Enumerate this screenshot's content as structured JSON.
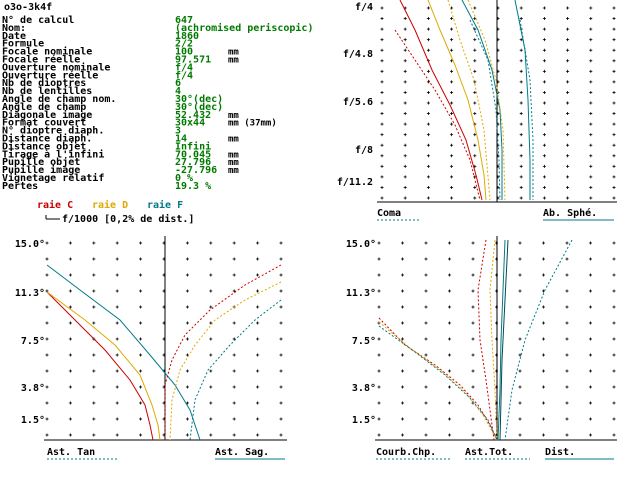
{
  "window_title": "o3o-3k4f",
  "colors": {
    "black": "#000000",
    "green": "#007a00",
    "red": "#cc0000",
    "yellow": "#e0a800",
    "blue": "#007a8a",
    "tick": "#000000"
  },
  "params": [
    {
      "label": "N° de calcul",
      "value": "647",
      "unit": ""
    },
    {
      "label": "Nom:",
      "value": "(achromised periscopic)",
      "unit": ""
    },
    {
      "label": "Date",
      "value": "1860",
      "unit": ""
    },
    {
      "label": "Formule",
      "value": "2/2",
      "unit": ""
    },
    {
      "label": "Focale nominale",
      "value": "100",
      "unit": "mm"
    },
    {
      "label": "Focale réelle",
      "value": "97.571",
      "unit": "mm"
    },
    {
      "label": "Ouverture nominale",
      "value": "f/4",
      "unit": ""
    },
    {
      "label": "Ouverture réelle",
      "value": "f/4",
      "unit": ""
    },
    {
      "label": "Nb de dioptres",
      "value": "6",
      "unit": ""
    },
    {
      "label": "Nb de lentilles",
      "value": "4",
      "unit": ""
    },
    {
      "label": "Angle de champ nom.",
      "value": "30°(dec)",
      "unit": ""
    },
    {
      "label": "Angle de champ",
      "value": "30°(dec)",
      "unit": ""
    },
    {
      "label": "Diagonale image",
      "value": "52.432",
      "unit": "mm"
    },
    {
      "label": "Format couvert",
      "value": "30x44",
      "unit": "mm (37mm)"
    },
    {
      "label": "N° dioptre diaph.",
      "value": "3",
      "unit": ""
    },
    {
      "label": "Distance diaph.",
      "value": "14",
      "unit": "mm"
    },
    {
      "label": "Distance objet",
      "value": "Infini",
      "unit": ""
    },
    {
      "label": "Tirage à l'infini",
      "value": "70.045",
      "unit": "mm"
    },
    {
      "label": "Pupille objet",
      "value": "27.796",
      "unit": "mm"
    },
    {
      "label": "Pupille image",
      "value": "-27.796",
      "unit": "mm"
    },
    {
      "label": "Vignetage relatif",
      "value": "0 %",
      "unit": ""
    },
    {
      "label": "Pertes",
      "value": "19.3 %",
      "unit": ""
    }
  ],
  "legend": {
    "raies": [
      {
        "text": "raie C",
        "color": "red"
      },
      {
        "text": "raie D",
        "color": "yellow"
      },
      {
        "text": "raie F",
        "color": "blue"
      }
    ],
    "scale_note": "f/1000 [0,2% de dist.]"
  },
  "panels": {
    "top_right": {
      "y_ticks": [
        "f/4",
        "f/4.8",
        "f/5.6",
        "f/8",
        "f/11.2"
      ],
      "labels": {
        "left": "Coma",
        "right": "Ab. Sphé."
      }
    },
    "bottom_left": {
      "y_ticks": [
        "15.0°",
        "11.3°",
        "7.5°",
        "3.8°",
        "1.5°"
      ],
      "labels": {
        "left": "Ast. Tan",
        "right": "Ast. Sag."
      }
    },
    "bottom_right": {
      "y_ticks": [
        "15.0°",
        "11.3°",
        "7.5°",
        "3.8°",
        "1.5°"
      ],
      "labels": {
        "left": "Courb.Chp.",
        "mid": "Ast.Tot.",
        "right": "Dist."
      }
    }
  }
}
